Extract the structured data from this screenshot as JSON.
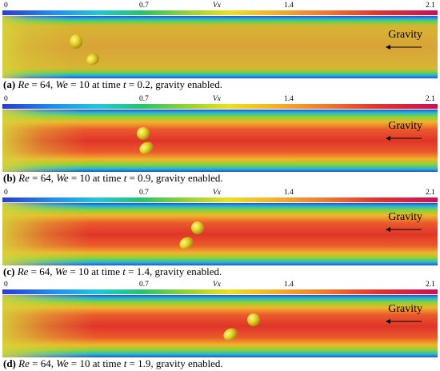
{
  "colorbar": {
    "ticks": [
      "0",
      "0.7",
      "1.4",
      "2.1"
    ],
    "variable": "Vx",
    "range": [
      0,
      2.1
    ]
  },
  "gravity_label": "Gravity",
  "panels": [
    {
      "letter": "(a)",
      "re_sym": "Re",
      "re": "64",
      "we_sym": "We",
      "we": "10",
      "t": "0.2",
      "text_pre": " at time ",
      "text_post": ", gravity enabled."
    },
    {
      "letter": "(b)",
      "re_sym": "Re",
      "re": "64",
      "we_sym": "We",
      "we": "10",
      "t": "0.9",
      "text_pre": " at time ",
      "text_post": ", gravity enabled."
    },
    {
      "letter": "(c)",
      "re_sym": "Re",
      "re": "64",
      "we_sym": "We",
      "we": "10",
      "t": "1.4",
      "text_pre": " at time ",
      "text_post": ", gravity enabled."
    },
    {
      "letter": "(d)",
      "re_sym": "Re",
      "re": "64",
      "we_sym": "We",
      "we": "10",
      "t": "1.9",
      "text_pre": " at time ",
      "text_post": ", gravity enabled."
    }
  ],
  "colors": {
    "core_a": "#d9a336",
    "core_b": "#e0352a",
    "wall": "#2a7bd8",
    "droplet": "#e6d020"
  }
}
